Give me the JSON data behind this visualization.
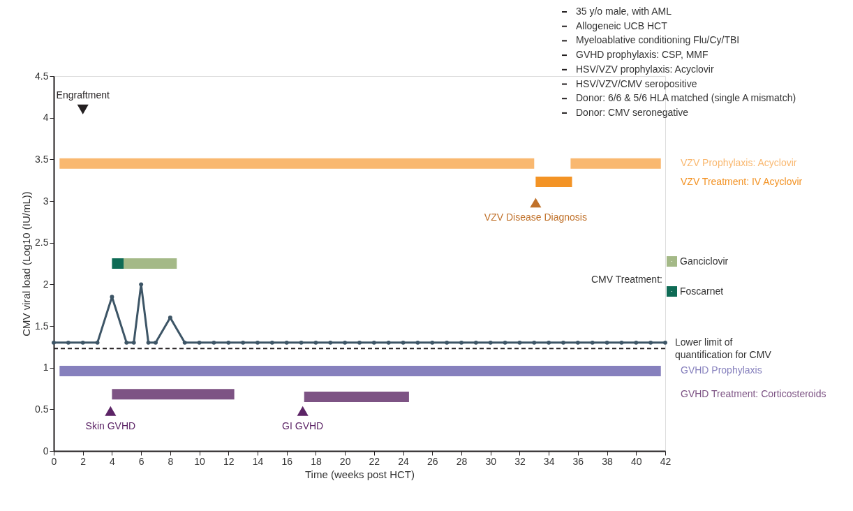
{
  "chart_data": {
    "type": "line",
    "xlabel": "Time (weeks post HCT)",
    "ylabel": "CMV viral load (Log10 (IU/mL))",
    "xlim": [
      0,
      42
    ],
    "xticks": [
      0,
      2,
      4,
      6,
      8,
      10,
      12,
      14,
      16,
      18,
      20,
      22,
      24,
      26,
      28,
      30,
      32,
      34,
      36,
      38,
      40,
      42
    ],
    "ylim": [
      0,
      4.5
    ],
    "yticks": [
      0,
      0.5,
      1,
      1.5,
      2,
      2.5,
      3,
      3.5,
      4,
      4.5
    ],
    "grid": false,
    "legend": "right",
    "legend_title": "CMV Treatment:",
    "series": [
      {
        "marker": "circle",
        "color": "#3d5566",
        "x": [
          0,
          1,
          2,
          3,
          4,
          5,
          5.5,
          6,
          6.5,
          7,
          8,
          9,
          10,
          11,
          12,
          13,
          14,
          15,
          16,
          17,
          18,
          19,
          20,
          21,
          22,
          23,
          24,
          25,
          26,
          27,
          28,
          29,
          30,
          31,
          32,
          33,
          34,
          35,
          36,
          37,
          38,
          39,
          40,
          41,
          42
        ],
        "values": [
          1.3,
          1.3,
          1.3,
          1.3,
          1.85,
          1.3,
          1.3,
          2.0,
          1.3,
          1.3,
          1.6,
          1.3,
          1.3,
          1.3,
          1.3,
          1.3,
          1.3,
          1.3,
          1.3,
          1.3,
          1.3,
          1.3,
          1.3,
          1.3,
          1.3,
          1.3,
          1.3,
          1.3,
          1.3,
          1.3,
          1.3,
          1.3,
          1.3,
          1.3,
          1.3,
          1.3,
          1.3,
          1.3,
          1.3,
          1.3,
          1.3,
          1.3,
          1.3,
          1.3,
          1.3
        ]
      },
      {
        "marker": "none",
        "name": "VZV Prophylaxis: Acyclovir",
        "color": "#f9b870",
        "x": [
          0.4,
          33,
          34,
          35.5,
          41.7
        ],
        "values": [
          3.45,
          3.45,
          null,
          3.45,
          3.45
        ]
      },
      {
        "marker": "none",
        "name": "VZV Treatment: IV Acyclovir",
        "color": "#f39325",
        "x": [
          33.1,
          35.6
        ],
        "values": [
          3.23,
          3.23
        ]
      },
      {
        "marker": "none",
        "name": "Ganciclovir",
        "color": "#a4b987",
        "x": [
          4.8,
          8.45
        ],
        "values": [
          2.25,
          2.25
        ]
      },
      {
        "marker": "none",
        "name": "Foscarnet",
        "color": "#0e6b55",
        "x": [
          4.0,
          4.8
        ],
        "values": [
          2.25,
          2.25
        ]
      },
      {
        "marker": "none",
        "name": "GVHD Prophylaxis",
        "color": "#8680bd",
        "x": [
          0.4,
          41.7
        ],
        "values": [
          0.96,
          0.96
        ]
      },
      {
        "marker": "none",
        "name": "GVHD Treatment: Corticosteroids",
        "color": "#7d5384",
        "x": [
          4.0,
          12.4,
          14,
          17.2,
          24.4
        ],
        "values": [
          0.68,
          0.68,
          null,
          0.65,
          0.65
        ]
      },
      {
        "type": "scatter",
        "marker": "triangle-down",
        "name": "Engraftment",
        "color": "#231f20",
        "x": [
          2
        ],
        "values": [
          4.1
        ]
      },
      {
        "type": "scatter",
        "marker": "triangle",
        "name": "VZV Disease Diagnosis",
        "color": "#c0712a",
        "x": [
          33.1
        ],
        "values": [
          2.98
        ]
      },
      {
        "type": "scatter",
        "marker": "triangle",
        "name": "Skin GVHD",
        "color": "#5c2466",
        "x": [
          3.9
        ],
        "values": [
          0.48
        ]
      },
      {
        "type": "scatter",
        "marker": "triangle",
        "name": "GI GVHD",
        "color": "#5c2466",
        "x": [
          17.1
        ],
        "values": [
          0.48
        ]
      }
    ],
    "ref_lines": [
      {
        "axis": "y",
        "value": 1.23,
        "label": "Lower limit of quantification for CMV",
        "line_style": "dashed",
        "color": "#231f20"
      }
    ],
    "annotations": [
      "35 y/o male, with AML",
      "Allogeneic UCB HCT",
      "Myeloablative conditioning Flu/Cy/TBI",
      "GVHD prophylaxis: CSP, MMF",
      "HSV/VZV prophylaxis: Acyclovir",
      "HSV/VZV/CMV seropositive",
      "Donor: 6/6 & 5/6 HLA matched (single A mismatch)",
      "Donor: CMV seronegative"
    ]
  }
}
